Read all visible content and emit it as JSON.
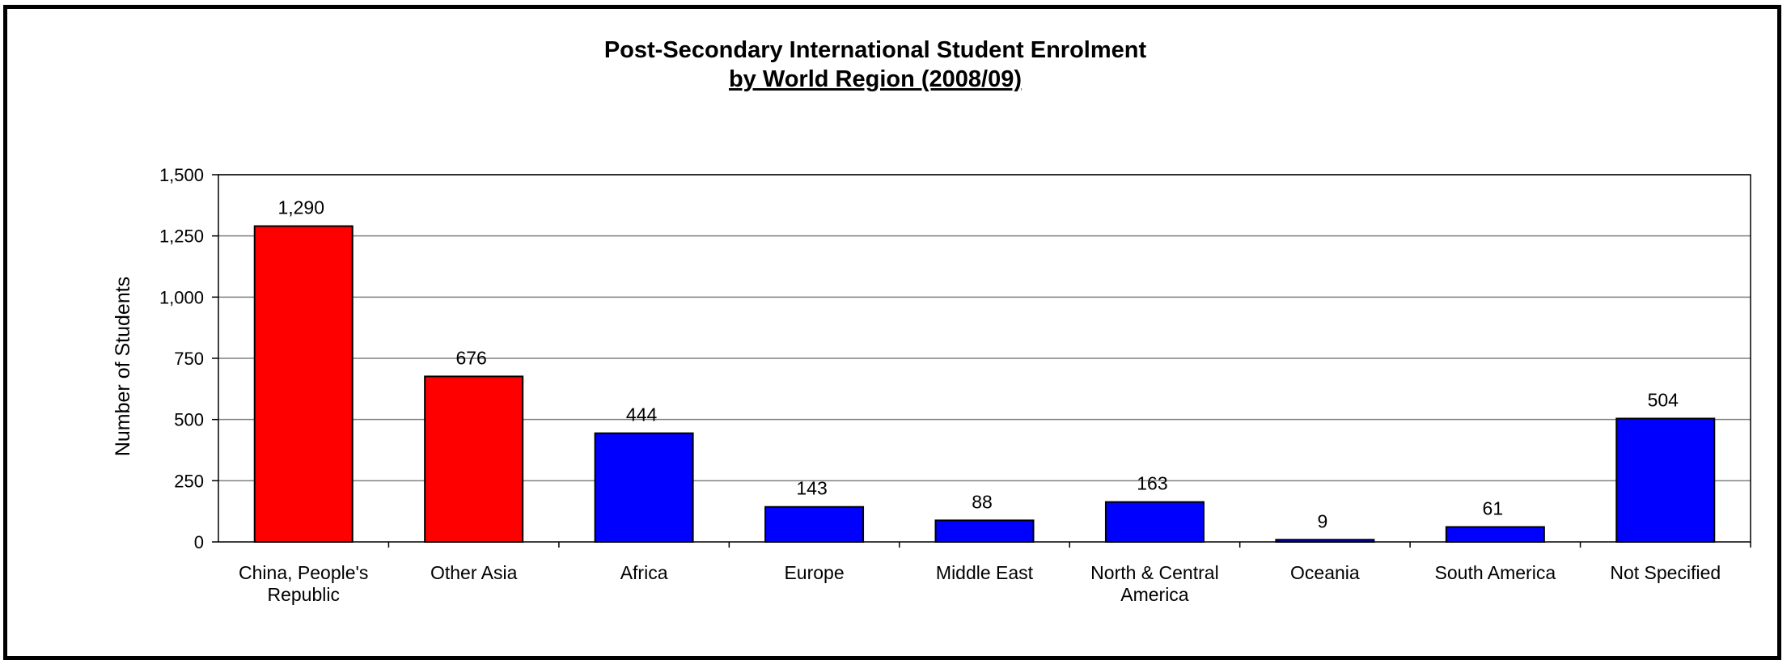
{
  "chart_data": {
    "type": "bar",
    "title": "Post-Secondary International Student Enrolment",
    "subtitle": "by World Region (2008/09)",
    "xlabel": "",
    "ylabel": "Number of Students",
    "ylim": [
      0,
      1500
    ],
    "yticks": [
      "0",
      "250",
      "500",
      "750",
      "1,000",
      "1,250",
      "1,500"
    ],
    "grid": true,
    "legend": "none",
    "categories": [
      [
        "China, People's",
        "Republic"
      ],
      [
        "Other Asia"
      ],
      [
        "Africa"
      ],
      [
        "Europe"
      ],
      [
        "Middle East"
      ],
      [
        "North & Central",
        "America"
      ],
      [
        "Oceania"
      ],
      [
        "South America"
      ],
      [
        "Not Specified"
      ]
    ],
    "values": [
      1290,
      676,
      444,
      143,
      88,
      163,
      9,
      61,
      504
    ],
    "value_labels": [
      "1,290",
      "676",
      "444",
      "143",
      "88",
      "163",
      "9",
      "61",
      "504"
    ],
    "bar_colors": [
      "#ff0000",
      "#ff0000",
      "#0000ff",
      "#0000ff",
      "#0000ff",
      "#0000ff",
      "#0000ff",
      "#0000ff",
      "#0000ff"
    ]
  }
}
